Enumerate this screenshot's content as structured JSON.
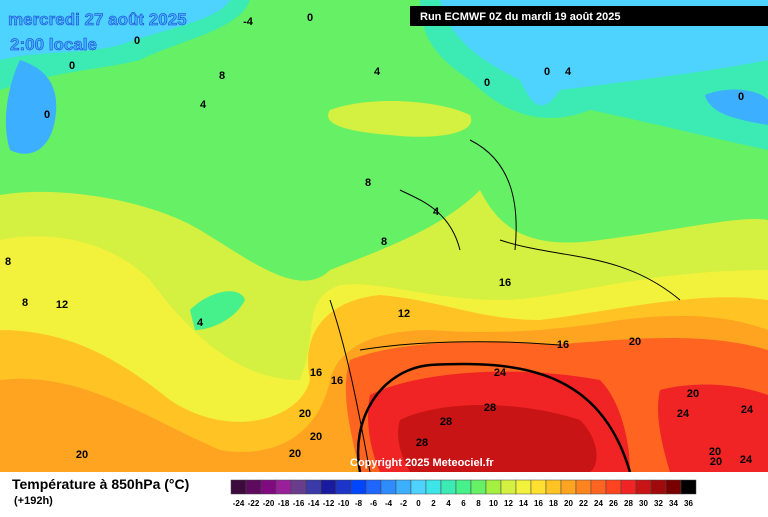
{
  "header": {
    "title": "mercredi 27 août 2025",
    "subtitle": "2:00 locale",
    "run": "Run ECMWF 0Z du mardi 19 août 2025"
  },
  "copyright": "Copyright 2025 Meteociel.fr",
  "legend": {
    "title": "Température à 850hPa (°C)",
    "lead": "(+192h)",
    "values": [
      -24,
      -22,
      -20,
      -18,
      -16,
      -14,
      -12,
      -10,
      -8,
      -6,
      -4,
      -2,
      0,
      2,
      4,
      6,
      8,
      10,
      12,
      14,
      16,
      18,
      20,
      22,
      24,
      26,
      28,
      30,
      32,
      34,
      36
    ],
    "colors": [
      "#3c0a3c",
      "#5e0a5e",
      "#800a80",
      "#9a209a",
      "#6a3c8c",
      "#3a3aa8",
      "#1a1aa0",
      "#1c34c8",
      "#0046ff",
      "#1e66ff",
      "#2e8cff",
      "#3cb0ff",
      "#4ed2ff",
      "#3ce6e6",
      "#3ceab4",
      "#46f08a",
      "#66f066",
      "#a4f040",
      "#d4f040",
      "#f2f23c",
      "#ffe030",
      "#ffc424",
      "#ffa420",
      "#ff8420",
      "#ff6420",
      "#ff4420",
      "#f02424",
      "#c81414",
      "#a00a0a",
      "#780000",
      "#000000"
    ]
  },
  "map": {
    "labels": [
      "-4",
      "0",
      "0",
      "0",
      "8",
      "4",
      "4",
      "0",
      "0",
      "0",
      "4",
      "0",
      "8",
      "4",
      "8",
      "8",
      "8",
      "12",
      "4",
      "12",
      "16",
      "16",
      "16",
      "20",
      "20",
      "20",
      "20",
      "24",
      "28",
      "28",
      "28",
      "16",
      "20",
      "20",
      "24",
      "24",
      "20",
      "20",
      "24"
    ]
  }
}
